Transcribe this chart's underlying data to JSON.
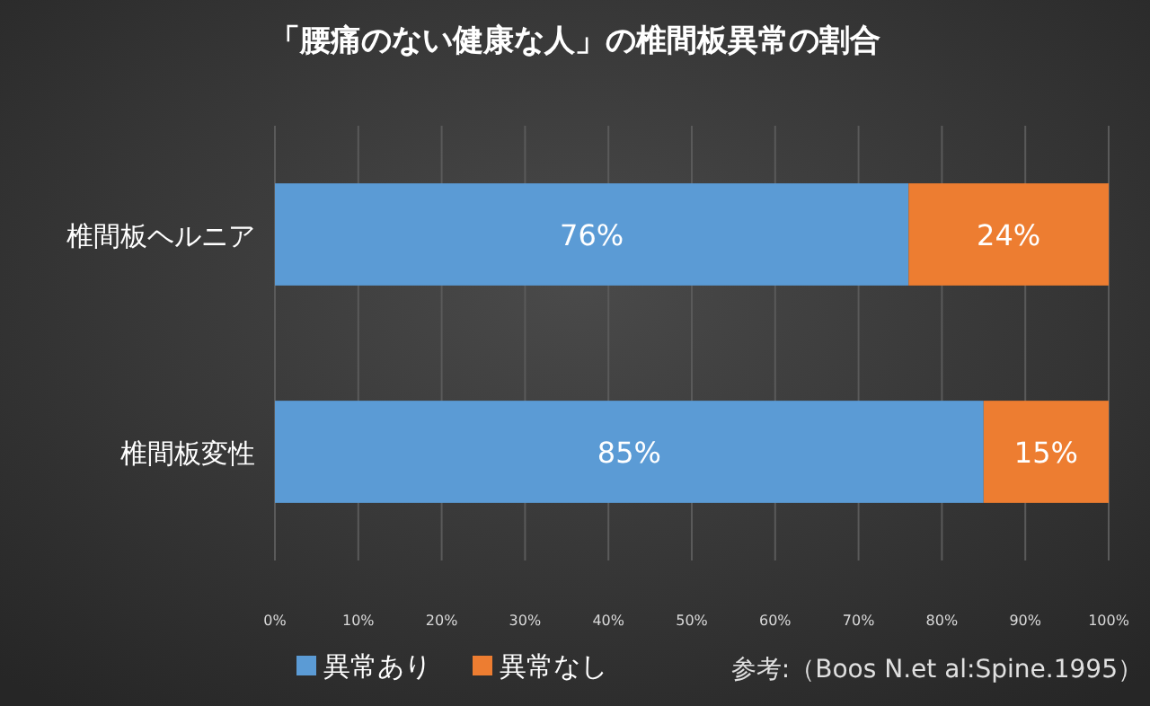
{
  "chart_data": {
    "type": "bar",
    "orientation": "horizontal",
    "stacked": true,
    "title": "「腰痛のない健康な人」の椎間板異常の割合",
    "categories": [
      "椎間板ヘルニア",
      "椎間板変性"
    ],
    "series": [
      {
        "name": "異常あり",
        "color": "#5b9bd5",
        "values": [
          76,
          85
        ],
        "value_labels": [
          "76%",
          "85%"
        ]
      },
      {
        "name": "異常なし",
        "color": "#ed7d31",
        "values": [
          24,
          15
        ],
        "value_labels": [
          "24%",
          "15%"
        ]
      }
    ],
    "xlim": [
      0,
      100
    ],
    "xticks": [
      {
        "value": 0,
        "label": "0%"
      },
      {
        "value": 10,
        "label": "10%"
      },
      {
        "value": 20,
        "label": "20%"
      },
      {
        "value": 30,
        "label": "30%"
      },
      {
        "value": 40,
        "label": "40%"
      },
      {
        "value": 50,
        "label": "50%"
      },
      {
        "value": 60,
        "label": "60%"
      },
      {
        "value": 70,
        "label": "70%"
      },
      {
        "value": 80,
        "label": "80%"
      },
      {
        "value": 90,
        "label": "90%"
      },
      {
        "value": 100,
        "label": "100%"
      }
    ],
    "grid": "x",
    "legend": "bottom",
    "annotations": [
      "参考:（Boos N.et al:Spine.1995）"
    ]
  }
}
